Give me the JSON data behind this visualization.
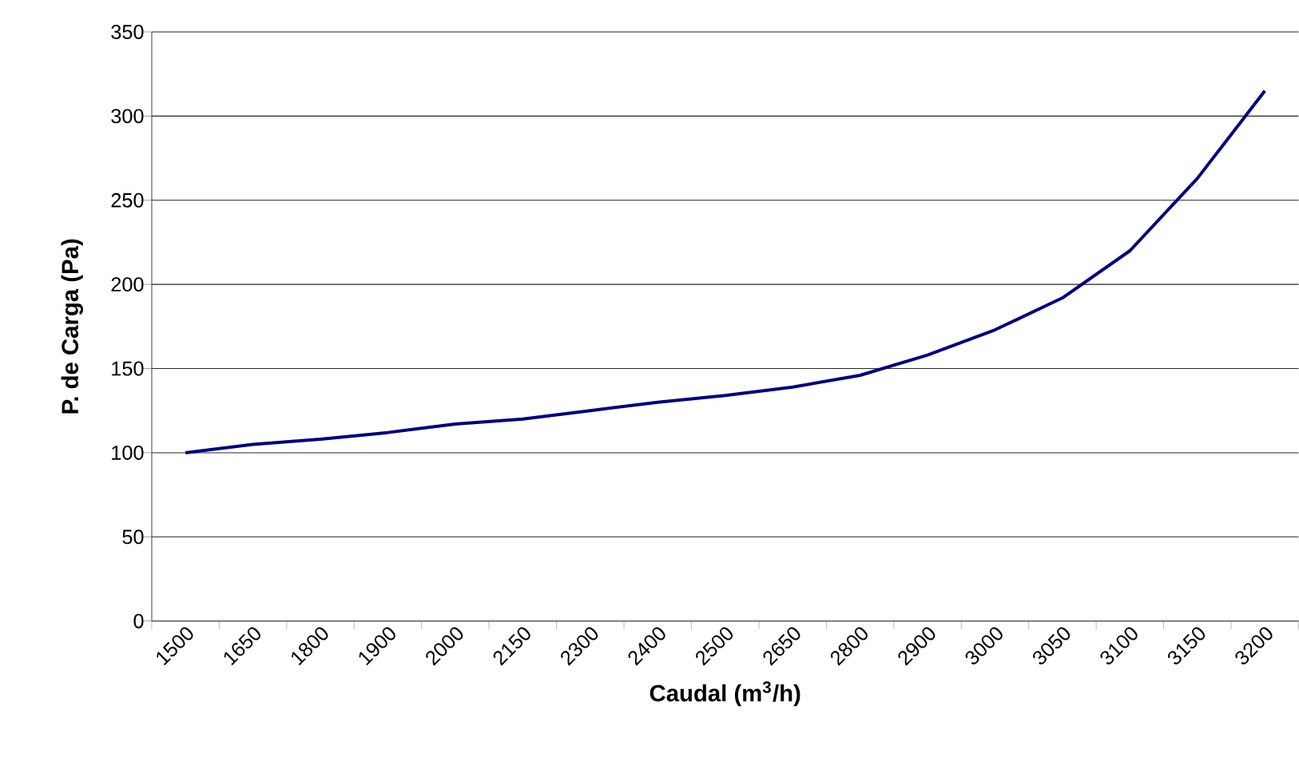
{
  "chart_data": {
    "type": "line",
    "xlabel": "Caudal (m$^{3}$/h)",
    "ylabel": "P. de Carga (Pa)",
    "categories": [
      "1500",
      "1650",
      "1800",
      "1900",
      "2000",
      "2150",
      "2300",
      "2400",
      "2500",
      "2650",
      "2800",
      "2900",
      "3000",
      "3050",
      "3100",
      "3150",
      "3200"
    ],
    "series": [
      {
        "color": "#000080",
        "values": [
          100,
          105,
          108,
          112,
          117,
          120,
          125,
          130,
          134,
          139,
          146,
          158,
          173,
          192,
          220,
          263,
          315
        ]
      }
    ],
    "ylim": [
      0,
      350
    ],
    "yticks": [
      0,
      50,
      100,
      150,
      200,
      250,
      300,
      350
    ],
    "grid": "y",
    "marker": "none",
    "line_style": "solid"
  }
}
